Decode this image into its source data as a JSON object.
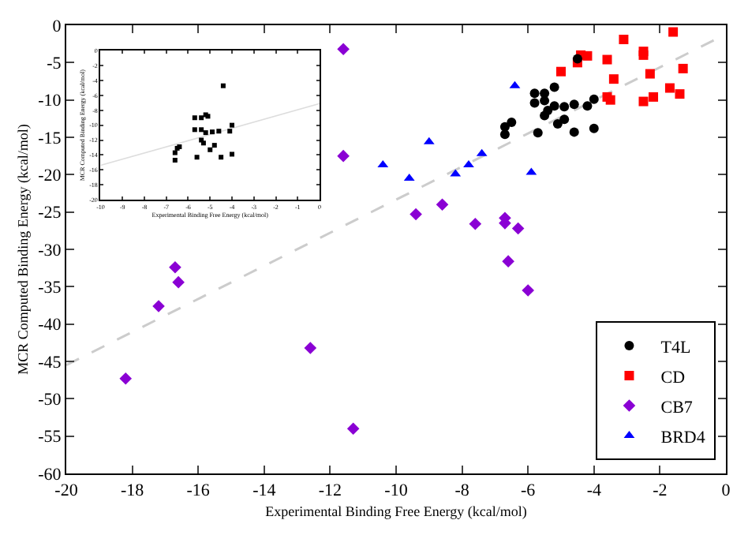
{
  "chart_data": [
    {
      "type": "scatter",
      "xlabel": "Experimental Binding Free Energy (kcal/mol)",
      "ylabel": "MCR Computed Binding Energy (kcal/mol)",
      "xlim": [
        -20,
        0
      ],
      "ylim": [
        -60,
        0
      ],
      "xticks": [
        -20,
        -18,
        -16,
        -14,
        -12,
        -10,
        -8,
        -6,
        -4,
        -2,
        0
      ],
      "yticks": [
        -60,
        -55,
        -50,
        -45,
        -40,
        -35,
        -30,
        -25,
        -20,
        -15,
        -10,
        -5,
        0
      ],
      "legend": "bottom right",
      "series": [
        {
          "name": "T4L",
          "color": "#000000",
          "marker": "circle",
          "x": [
            -6.7,
            -6.7,
            -6.5,
            -5.7,
            -5.8,
            -5.5,
            -5.2,
            -5.8,
            -5.5,
            -5.2,
            -5.5,
            -5.4,
            -4.9,
            -4.6,
            -5.1,
            -4.9,
            -4.6,
            -4.2,
            -4.0,
            -4.0,
            -4.5
          ],
          "values": [
            -14.6,
            -13.6,
            -13.0,
            -14.4,
            -9.1,
            -9.1,
            -8.3,
            -10.4,
            -10.1,
            -10.8,
            -12.1,
            -11.4,
            -10.9,
            -10.6,
            -13.2,
            -12.6,
            -14.3,
            -10.8,
            -9.9,
            -13.8,
            -4.5
          ]
        },
        {
          "name": "CD",
          "color": "#ff0000",
          "marker": "square",
          "x": [
            -5.0,
            -4.5,
            -4.4,
            -4.2,
            -3.6,
            -3.1,
            -3.4,
            -3.6,
            -3.5,
            -2.5,
            -2.5,
            -2.3,
            -2.5,
            -2.2,
            -1.7,
            -1.4,
            -1.6,
            -1.3
          ],
          "values": [
            -6.2,
            -5.0,
            -4.0,
            -4.1,
            -4.6,
            -1.9,
            -7.2,
            -9.6,
            -10.0,
            -4.0,
            -3.5,
            -6.5,
            -10.2,
            -9.6,
            -8.4,
            -9.2,
            -0.9,
            -5.8
          ]
        },
        {
          "name": "CB7",
          "color": "#8a00d4",
          "marker": "diamond",
          "x": [
            -11.6,
            -11.6,
            -9.4,
            -8.6,
            -7.6,
            -6.7,
            -6.7,
            -6.3,
            -6.6,
            -6.0,
            -16.7,
            -16.6,
            -17.2,
            -18.2,
            -12.6,
            -11.3
          ],
          "values": [
            -3.2,
            -17.5,
            -25.3,
            -24.0,
            -26.6,
            -25.8,
            -26.5,
            -27.2,
            -31.6,
            -35.5,
            -32.4,
            -34.4,
            -37.6,
            -47.3,
            -43.2,
            -54.0
          ]
        },
        {
          "name": "BRD4",
          "color": "#0000ff",
          "marker": "triangle",
          "x": [
            -10.4,
            -9.6,
            -9.0,
            -8.2,
            -7.8,
            -7.4,
            -6.4,
            -5.9
          ],
          "values": [
            -18.7,
            -20.5,
            -15.6,
            -19.9,
            -18.7,
            -17.2,
            -8.1,
            -19.7
          ]
        },
        {
          "type": "line",
          "color": "#cccccc",
          "line_style": "dashed",
          "x": [
            -20,
            0
          ],
          "values": [
            -45.5,
            -1.2
          ]
        }
      ]
    },
    {
      "type": "scatter",
      "xlabel": "Experimental Binding Free Energy (kcal/mol)",
      "ylabel": "MCR Computed Binding Energy (kcal/mol)",
      "xlim": [
        -10,
        0
      ],
      "ylim": [
        -20,
        0
      ],
      "xticks": [
        -10,
        -9,
        -8,
        -7,
        -6,
        -5,
        -4,
        -3,
        -2,
        -1,
        0
      ],
      "yticks": [
        -20,
        -18,
        -16,
        -14,
        -12,
        -10,
        -8,
        -6,
        -4,
        -2,
        0
      ],
      "series": [
        {
          "color": "#000000",
          "marker": "square",
          "x": [
            -4.4,
            -5.7,
            -5.4,
            -5.2,
            -5.1,
            -5.7,
            -5.4,
            -5.2,
            -4.9,
            -4.6,
            -4.0,
            -4.1,
            -5.4,
            -5.3,
            -4.8,
            -5.0,
            -6.6,
            -6.5,
            -6.4,
            -6.6,
            -5.6,
            -4.5,
            -4.0
          ],
          "values": [
            -4.7,
            -9.0,
            -9.0,
            -8.6,
            -8.8,
            -10.6,
            -10.6,
            -11.0,
            -10.9,
            -10.8,
            -10.0,
            -10.8,
            -12.0,
            -12.4,
            -12.7,
            -13.3,
            -13.7,
            -13.1,
            -12.9,
            -14.7,
            -14.3,
            -14.3,
            -13.9
          ]
        },
        {
          "type": "line",
          "color": "#dddddd",
          "line_style": "solid",
          "x": [
            -10,
            0
          ],
          "values": [
            -15.4,
            -7.1
          ]
        }
      ]
    }
  ]
}
